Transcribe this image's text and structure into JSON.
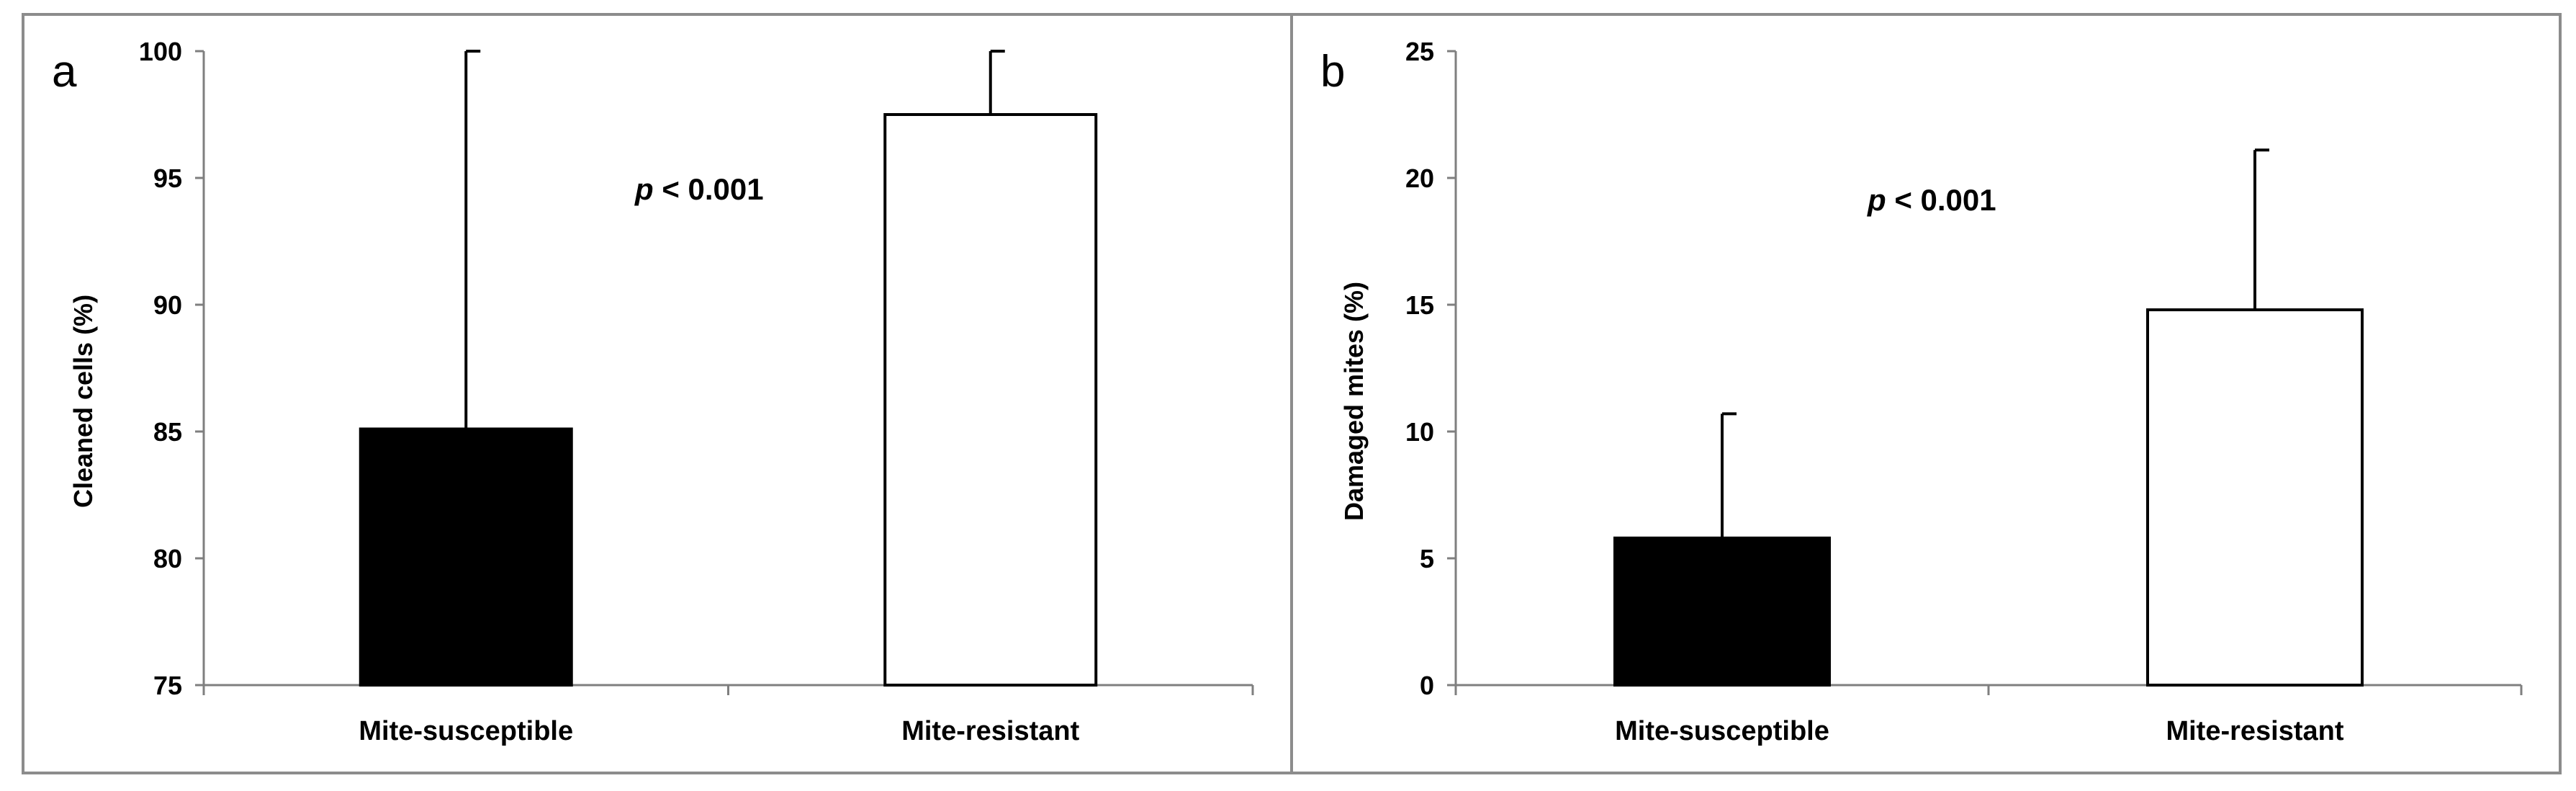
{
  "colors": {
    "bar_susceptible": "#000000",
    "bar_resistant": "#ffffff",
    "axis": "#7f7f7f",
    "border": "#8c8c8c"
  },
  "chart_data": [
    {
      "type": "bar",
      "panel_label": "a",
      "categories": [
        "Mite-susceptible",
        "Mite-resistant"
      ],
      "values": [
        85.1,
        97.5
      ],
      "error_upper": [
        14.9,
        2.5
      ],
      "bar_colors": [
        "#000000",
        "#ffffff"
      ],
      "ylabel": "Cleaned cells (%)",
      "xlabel": "",
      "ylim": [
        75,
        100
      ],
      "yticks": [
        75,
        80,
        85,
        90,
        95,
        100
      ],
      "annotation": {
        "p": "p",
        "rest": " < 0.001"
      },
      "grid": false
    },
    {
      "type": "bar",
      "panel_label": "b",
      "categories": [
        "Mite-susceptible",
        "Mite-resistant"
      ],
      "values": [
        5.8,
        14.8
      ],
      "error_upper": [
        4.9,
        6.3
      ],
      "bar_colors": [
        "#000000",
        "#ffffff"
      ],
      "ylabel": "Damaged mites (%)",
      "xlabel": "",
      "ylim": [
        0,
        25
      ],
      "yticks": [
        0,
        5,
        10,
        15,
        20,
        25
      ],
      "annotation": {
        "p": "p",
        "rest": " < 0.001"
      },
      "grid": false
    }
  ]
}
